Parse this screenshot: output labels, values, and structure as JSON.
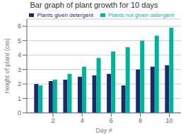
{
  "chart_data": {
    "type": "bar",
    "title": "Bar graph of plant growth for 10 days",
    "xlabel": "Day #",
    "ylabel": "Height of plant (cm)",
    "x": [
      1,
      2,
      3,
      4,
      5,
      6,
      7,
      8,
      9,
      10
    ],
    "series": [
      {
        "name": "Plants given detergent",
        "color": "#1b2a6b",
        "values": [
          2.0,
          2.2,
          2.3,
          2.5,
          2.6,
          2.7,
          1.9,
          3.0,
          3.2,
          3.3
        ]
      },
      {
        "name": "Plants not given detergent",
        "color": "#00b49c",
        "values": [
          1.9,
          2.3,
          2.7,
          3.2,
          3.8,
          4.25,
          4.55,
          5.0,
          5.35,
          5.9
        ]
      }
    ],
    "xlim": [
      0.2,
      10.8
    ],
    "xticks": [
      2,
      4,
      6,
      8,
      10
    ],
    "ylim": [
      0,
      6.5
    ],
    "yticks": [
      0,
      1,
      2,
      3,
      4,
      5,
      6
    ],
    "grid": true,
    "legend": "upper right"
  }
}
